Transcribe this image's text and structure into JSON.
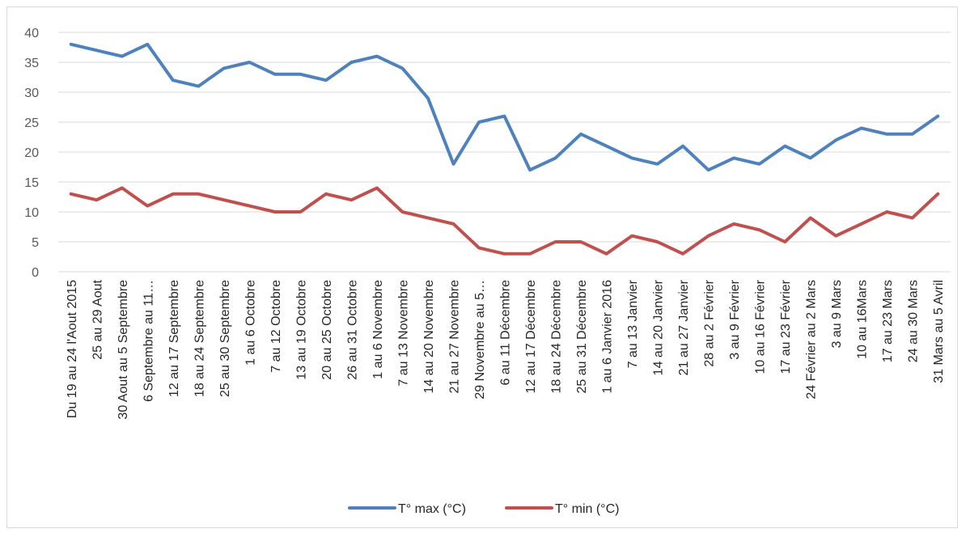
{
  "chart_data": {
    "type": "line",
    "title": "",
    "xlabel": "",
    "ylabel": "",
    "ylim": [
      0,
      40
    ],
    "yticks": [
      0,
      5,
      10,
      15,
      20,
      25,
      30,
      35,
      40
    ],
    "grid": true,
    "legend_position": "bottom",
    "categories": [
      "Du 19 au 24 l'Aout 2015",
      "25 au 29 Aout",
      "30 Aout au 5 Septembre",
      "6 Septembre au 11…",
      "12 au 17 Septembre",
      "18 au 24 Septembre",
      "25 au 30 Septembre",
      "1 au 6 Octobre",
      "7 au 12 Octobre",
      "13 au 19 Octobre",
      "20 au 25 Octobre",
      "26 au 31 Octobre",
      "1 au 6 Novembre",
      "7 au 13 Novembre",
      "14 au 20 Novembre",
      "21 au 27 Novembre",
      "29 Novembre au 5…",
      "6 au 11 Décembre",
      "12 au 17 Décembre",
      "18 au 24 Décembre",
      "25 au 31 Décembre",
      "1 au 6 Janvier 2016",
      "7 au 13 Janvier",
      "14 au 20 Janvier",
      "21 au 27 Janvier",
      "28 au 2 Février",
      "3 au 9 Février",
      "10 au 16 Février",
      "17 au 23 Février",
      "24 Février au 2 Mars",
      "3 au 9 Mars",
      "10 au 16Mars",
      "17 au 23 Mars",
      "24 au 30 Mars",
      "31 Mars au 5 Avril"
    ],
    "series": [
      {
        "name": "T° max (°C)",
        "color": "#4f81bd",
        "values": [
          38,
          37,
          36,
          38,
          32,
          31,
          34,
          35,
          33,
          33,
          32,
          35,
          36,
          34,
          29,
          18,
          25,
          26,
          17,
          19,
          23,
          21,
          19,
          18,
          21,
          17,
          19,
          18,
          21,
          19,
          22,
          24,
          23,
          23,
          26
        ]
      },
      {
        "name": "T° min (°C)",
        "color": "#c0504d",
        "values": [
          13,
          12,
          14,
          11,
          13,
          13,
          12,
          11,
          10,
          10,
          13,
          12,
          14,
          10,
          9,
          8,
          4,
          3,
          3,
          5,
          5,
          3,
          6,
          5,
          3,
          6,
          8,
          7,
          5,
          9,
          6,
          8,
          10,
          9,
          13
        ]
      }
    ]
  }
}
